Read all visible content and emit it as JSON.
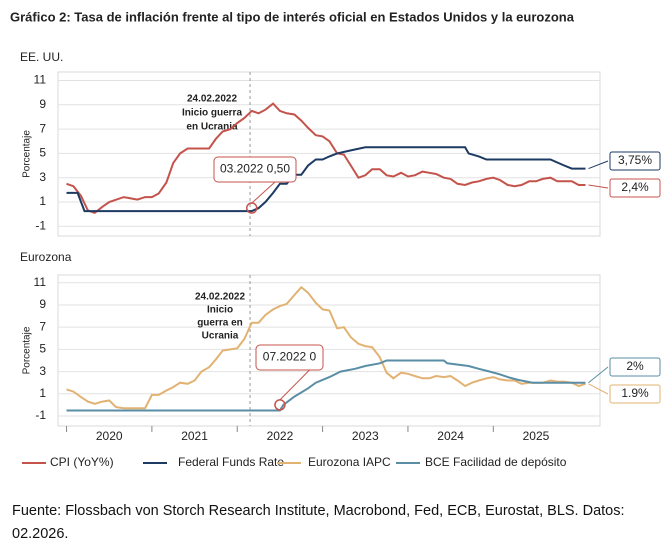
{
  "title": "Gráfico 2: Tasa de inflación frente al tipo de interés oficial en Estados Unidos y la eurozona",
  "source": "Fuente: Flossbach von Storch Research Institute, Macrobond, Fed, ECB, Eurostat, BLS. Datos: 02.2026.",
  "chart_data": [
    {
      "type": "line",
      "panel_title": "EE. UU.",
      "y_label": "Porcentaje",
      "xlim": [
        2019.9,
        2026.25
      ],
      "ylim": [
        -1.8,
        11.7
      ],
      "yticks": [
        -1,
        1,
        3,
        5,
        7,
        9,
        11
      ],
      "grid": true,
      "event": {
        "x": 2022.15,
        "lines": [
          "24.02.2022",
          "Inicio guerra",
          "en Ucrania"
        ]
      },
      "callout": {
        "text": "03.2022 0,50",
        "x": 2022.17,
        "y": 0.5
      },
      "series": [
        {
          "name": "CPI (YoY%)",
          "color": "#c4534c",
          "end_label": "2,4%",
          "x": [
            2020.0,
            2020.08,
            2020.17,
            2020.25,
            2020.33,
            2020.42,
            2020.5,
            2020.67,
            2020.83,
            2020.92,
            2021.0,
            2021.08,
            2021.17,
            2021.25,
            2021.33,
            2021.42,
            2021.5,
            2021.67,
            2021.75,
            2021.83,
            2021.92,
            2022.0,
            2022.08,
            2022.17,
            2022.25,
            2022.33,
            2022.42,
            2022.5,
            2022.58,
            2022.67,
            2022.75,
            2022.83,
            2022.92,
            2023.0,
            2023.08,
            2023.17,
            2023.25,
            2023.33,
            2023.42,
            2023.5,
            2023.58,
            2023.67,
            2023.75,
            2023.83,
            2023.92,
            2024.0,
            2024.08,
            2024.17,
            2024.25,
            2024.33,
            2024.42,
            2024.5,
            2024.58,
            2024.67,
            2024.75,
            2024.83,
            2024.92,
            2025.0,
            2025.08,
            2025.17,
            2025.25,
            2025.33,
            2025.42,
            2025.5,
            2025.58,
            2025.67,
            2025.75,
            2025.83,
            2025.92,
            2026.0,
            2026.08
          ],
          "values": [
            2.5,
            2.3,
            1.5,
            0.3,
            0.1,
            0.6,
            1.0,
            1.4,
            1.2,
            1.4,
            1.4,
            1.7,
            2.6,
            4.2,
            5.0,
            5.4,
            5.4,
            5.4,
            6.2,
            6.8,
            7.0,
            7.5,
            7.9,
            8.5,
            8.3,
            8.6,
            9.1,
            8.5,
            8.3,
            8.2,
            7.7,
            7.1,
            6.5,
            6.4,
            6.0,
            5.0,
            4.9,
            4.0,
            3.0,
            3.2,
            3.7,
            3.7,
            3.2,
            3.1,
            3.4,
            3.1,
            3.2,
            3.5,
            3.4,
            3.3,
            3.0,
            2.9,
            2.5,
            2.4,
            2.6,
            2.7,
            2.9,
            3.0,
            2.8,
            2.4,
            2.3,
            2.4,
            2.7,
            2.7,
            2.9,
            3.0,
            2.7,
            2.7,
            2.7,
            2.4,
            2.4
          ]
        },
        {
          "name": "Federal Funds Rate",
          "color": "#1d3a63",
          "end_label": "3,75%",
          "x": [
            2020.0,
            2020.13,
            2020.21,
            2022.17,
            2022.25,
            2022.33,
            2022.42,
            2022.5,
            2022.58,
            2022.67,
            2022.75,
            2022.83,
            2022.92,
            2023.0,
            2023.08,
            2023.17,
            2023.33,
            2023.5,
            2024.67,
            2024.71,
            2024.83,
            2024.92,
            2025.67,
            2025.75,
            2025.83,
            2025.92,
            2026.08
          ],
          "values": [
            1.75,
            1.75,
            0.25,
            0.25,
            0.5,
            1.0,
            1.75,
            2.5,
            2.5,
            3.25,
            3.25,
            4.0,
            4.5,
            4.5,
            4.75,
            5.0,
            5.25,
            5.5,
            5.5,
            5.0,
            4.75,
            4.5,
            4.5,
            4.25,
            4.0,
            3.75,
            3.75
          ]
        }
      ]
    },
    {
      "type": "line",
      "panel_title": "Eurozona",
      "y_label": "Porcentaje",
      "xlim": [
        2019.9,
        2026.25
      ],
      "ylim": [
        -1.9,
        11.7
      ],
      "yticks": [
        -1,
        1,
        3,
        5,
        7,
        9,
        11
      ],
      "grid": true,
      "xticks": [
        {
          "value": 2020.5,
          "label": "2020"
        },
        {
          "value": 2021.5,
          "label": "2021"
        },
        {
          "value": 2022.5,
          "label": "2022"
        },
        {
          "value": 2023.5,
          "label": "2023"
        },
        {
          "value": 2024.5,
          "label": "2024"
        },
        {
          "value": 2025.5,
          "label": "2025"
        }
      ],
      "event": {
        "x": 2022.15,
        "lines": [
          "24.02.2022",
          "Inicio",
          "guerra en",
          "Ucrania"
        ]
      },
      "callout": {
        "text": "07.2022 0",
        "x": 2022.5,
        "y": 0
      },
      "series": [
        {
          "name": "Eurozona IAPC",
          "color": "#e2b272",
          "end_label": "1.9%",
          "x": [
            2020.0,
            2020.08,
            2020.17,
            2020.25,
            2020.33,
            2020.42,
            2020.5,
            2020.58,
            2020.67,
            2020.83,
            2020.92,
            2021.0,
            2021.08,
            2021.17,
            2021.25,
            2021.33,
            2021.42,
            2021.5,
            2021.58,
            2021.67,
            2021.75,
            2021.83,
            2021.92,
            2022.0,
            2022.08,
            2022.17,
            2022.25,
            2022.33,
            2022.42,
            2022.5,
            2022.58,
            2022.67,
            2022.75,
            2022.83,
            2022.92,
            2023.0,
            2023.08,
            2023.17,
            2023.25,
            2023.33,
            2023.42,
            2023.5,
            2023.58,
            2023.67,
            2023.75,
            2023.83,
            2023.92,
            2024.0,
            2024.08,
            2024.17,
            2024.25,
            2024.33,
            2024.42,
            2024.5,
            2024.58,
            2024.67,
            2024.75,
            2024.83,
            2024.92,
            2025.0,
            2025.08,
            2025.17,
            2025.25,
            2025.33,
            2025.42,
            2025.5,
            2025.58,
            2025.67,
            2025.75,
            2025.83,
            2025.92,
            2026.0,
            2026.08
          ],
          "values": [
            1.4,
            1.2,
            0.7,
            0.3,
            0.1,
            0.3,
            0.4,
            -0.2,
            -0.3,
            -0.3,
            -0.3,
            0.9,
            0.9,
            1.3,
            1.6,
            2.0,
            1.9,
            2.2,
            3.0,
            3.4,
            4.1,
            4.9,
            5.0,
            5.1,
            5.9,
            7.4,
            7.4,
            8.1,
            8.6,
            8.9,
            9.1,
            9.9,
            10.6,
            10.1,
            9.2,
            8.6,
            8.5,
            6.9,
            7.0,
            6.1,
            5.5,
            5.3,
            5.2,
            4.3,
            2.9,
            2.4,
            2.9,
            2.8,
            2.6,
            2.4,
            2.4,
            2.6,
            2.5,
            2.6,
            2.2,
            1.7,
            2.0,
            2.2,
            2.4,
            2.5,
            2.3,
            2.2,
            2.2,
            1.9,
            2.0,
            2.0,
            2.0,
            2.2,
            2.1,
            2.1,
            2.0,
            1.7,
            1.9
          ]
        },
        {
          "name": "BCE Facilidad de depósito",
          "color": "#5a8ea6",
          "end_label": "2%",
          "x": [
            2020.0,
            2022.5,
            2022.54,
            2022.67,
            2022.83,
            2022.92,
            2023.08,
            2023.21,
            2023.38,
            2023.5,
            2023.67,
            2023.75,
            2024.42,
            2024.46,
            2024.71,
            2024.83,
            2024.96,
            2025.08,
            2025.17,
            2025.29,
            2025.46,
            2026.08
          ],
          "values": [
            -0.5,
            -0.5,
            0,
            0.75,
            1.5,
            2.0,
            2.5,
            3.0,
            3.25,
            3.5,
            3.75,
            4.0,
            4.0,
            3.75,
            3.5,
            3.25,
            3.0,
            2.75,
            2.5,
            2.25,
            2.0,
            2.0
          ]
        }
      ]
    }
  ]
}
